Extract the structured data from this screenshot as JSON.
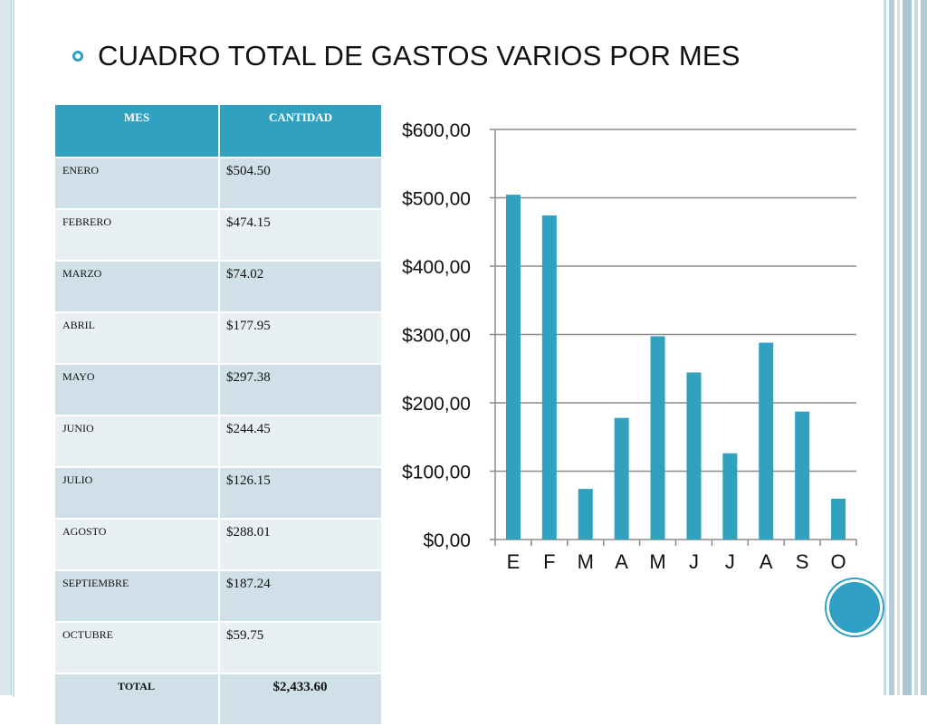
{
  "slide": {
    "title": "CUADRO TOTAL DE GASTOS VARIOS POR MES"
  },
  "table": {
    "headers": [
      "MES",
      "CANTIDAD"
    ],
    "rows": [
      {
        "mes": "ENERO",
        "cantidad": "$504.50"
      },
      {
        "mes": "FEBRERO",
        "cantidad": "$474.15"
      },
      {
        "mes": "MARZO",
        "cantidad": "$74.02"
      },
      {
        "mes": "ABRIL",
        "cantidad": "$177.95"
      },
      {
        "mes": "MAYO",
        "cantidad": "$297.38"
      },
      {
        "mes": "JUNIO",
        "cantidad": "$244.45"
      },
      {
        "mes": "JULIO",
        "cantidad": "$126.15"
      },
      {
        "mes": "AGOSTO",
        "cantidad": "$288.01"
      },
      {
        "mes": "SEPTIEMBRE",
        "cantidad": "$187.24"
      },
      {
        "mes": "OCTUBRE",
        "cantidad": "$59.75"
      }
    ],
    "total_label": "TOTAL",
    "total_value": "$2,433.60"
  },
  "colors": {
    "accent": "#31a1c0",
    "row_dark": "#cfe0e8",
    "row_light": "#e8f0f4",
    "bar": "#31a1c0",
    "grid": "#8c8c8c"
  },
  "chart_data": {
    "type": "bar",
    "categories": [
      "E",
      "F",
      "M",
      "A",
      "M",
      "J",
      "J",
      "A",
      "S",
      "O"
    ],
    "values": [
      504.5,
      474.15,
      74.02,
      177.95,
      297.38,
      244.45,
      126.15,
      288.01,
      187.24,
      59.75
    ],
    "y_tick_labels": [
      "$0,00",
      "$100,00",
      "$200,00",
      "$300,00",
      "$400,00",
      "$500,00",
      "$600,00"
    ],
    "y_ticks": [
      0,
      100,
      200,
      300,
      400,
      500,
      600
    ],
    "ylim": [
      0,
      600
    ],
    "grid": true,
    "legend": "none"
  }
}
